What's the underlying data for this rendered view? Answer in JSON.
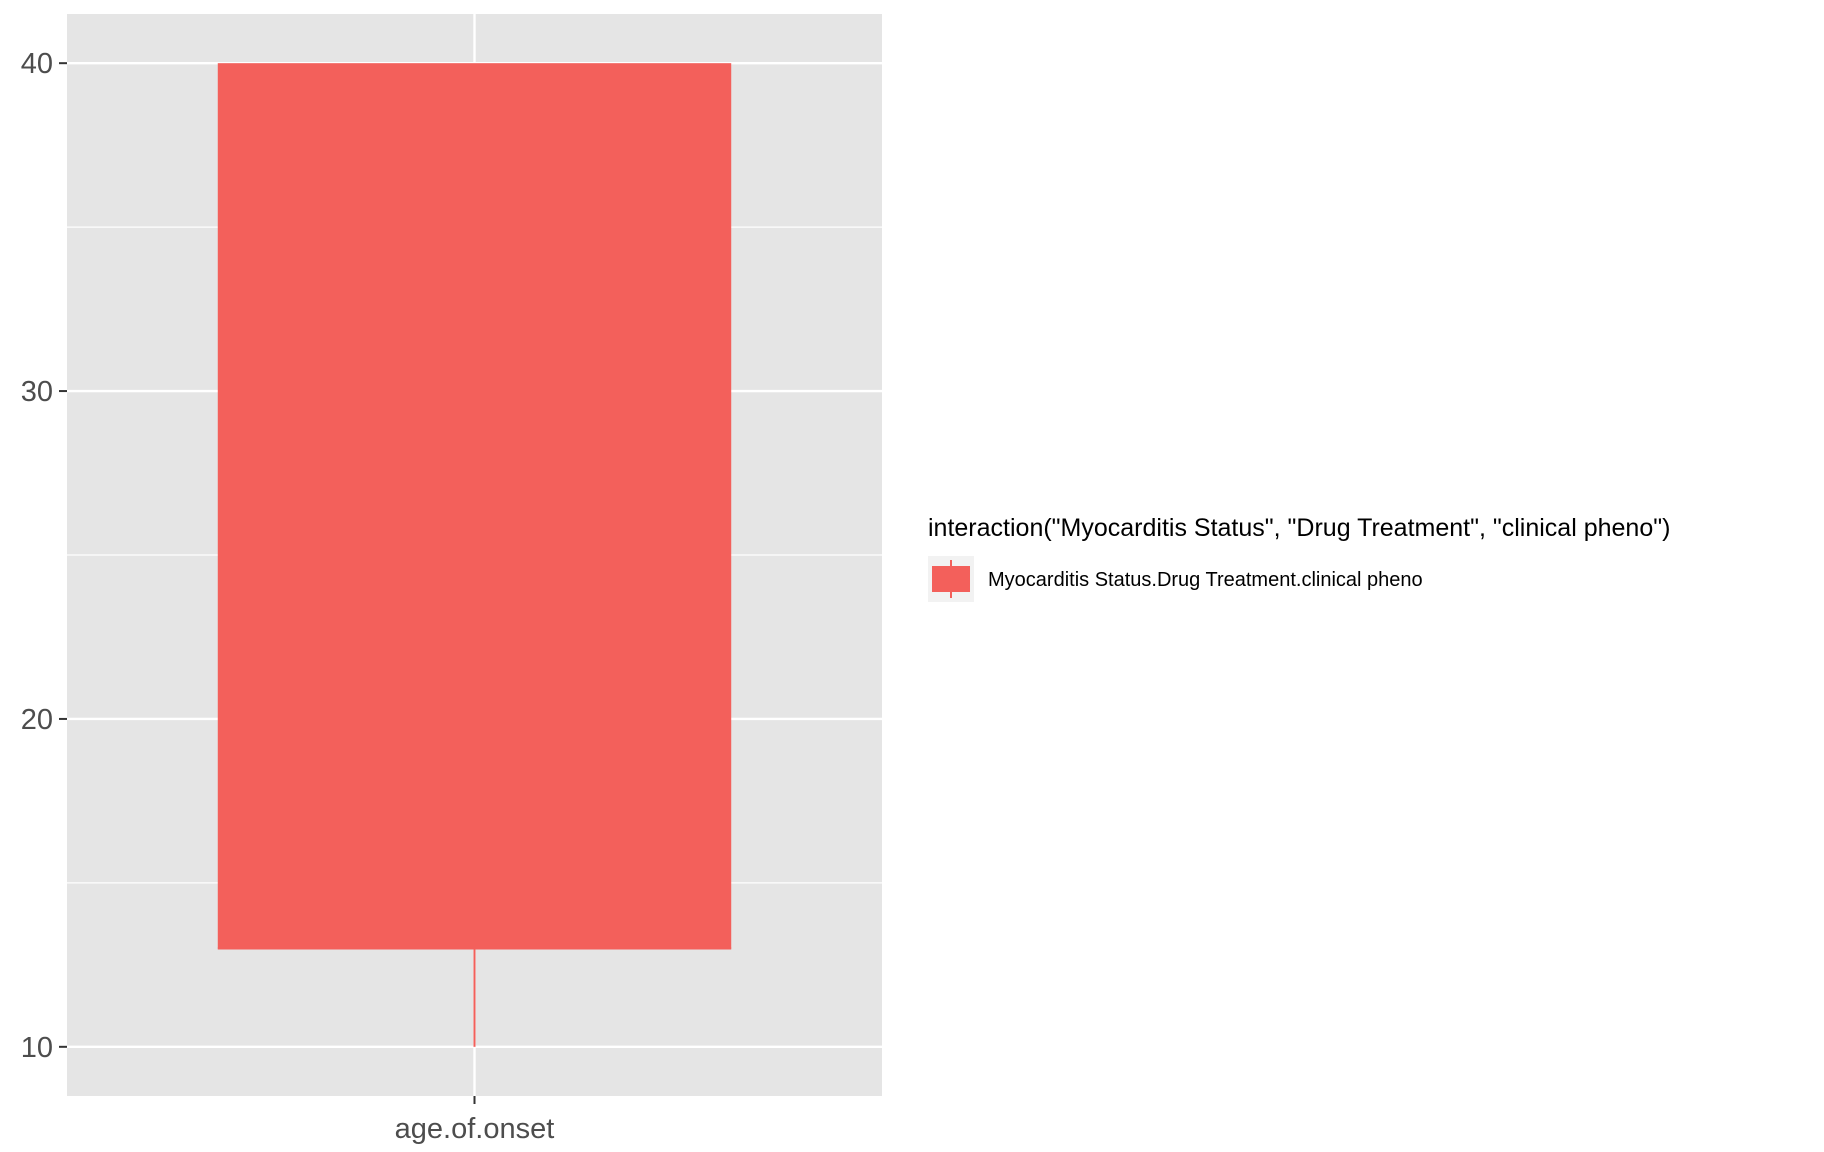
{
  "chart_data": {
    "type": "boxplot",
    "categories": [
      "age.of.onset"
    ],
    "series": [
      {
        "name": "Myocarditis Status.Drug Treatment.clinical pheno",
        "color": "#f3605b",
        "boxes": [
          {
            "category": "age.of.onset",
            "min": 10,
            "q1": 13,
            "median": 13,
            "q3": 40,
            "max": 40
          }
        ]
      }
    ],
    "y_ticks": [
      10,
      20,
      30,
      40
    ],
    "y_tick_labels": [
      "10",
      "20",
      "30",
      "40"
    ],
    "ylim": [
      8.5,
      41.5
    ],
    "grid": true,
    "panel_background": "#e5e5e5",
    "grid_color": "#ffffff",
    "legend": {
      "position": "right",
      "title": "interaction(\"Myocarditis Status\", \"Drug Treatment\", \"clinical pheno\")",
      "entries": [
        "Myocarditis Status.Drug Treatment.clinical pheno"
      ]
    }
  }
}
